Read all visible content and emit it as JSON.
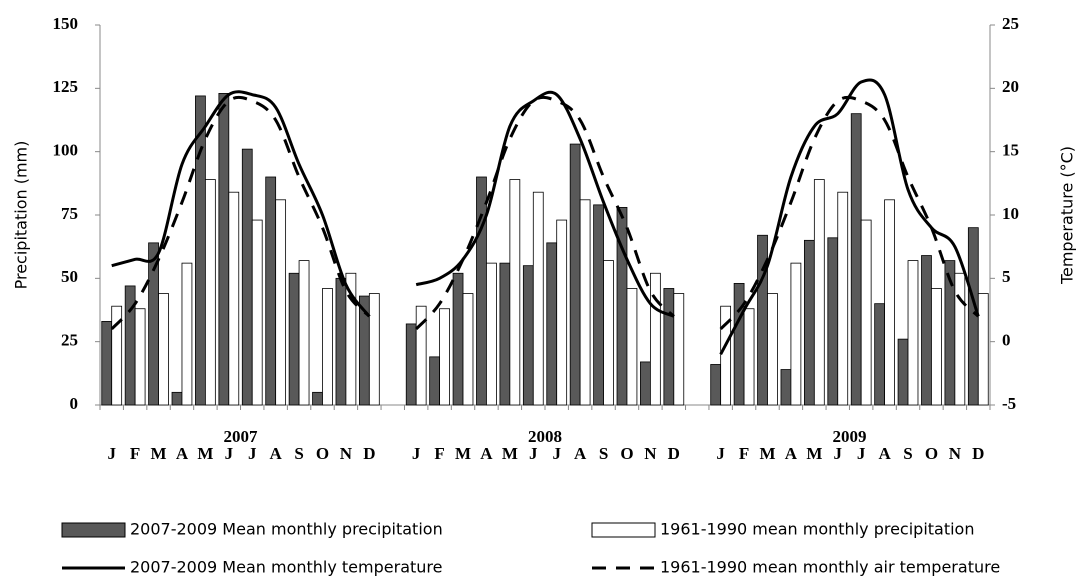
{
  "chart_data": {
    "type": "bar-line",
    "y_label": "Precipitation (mm)",
    "y2_label": "Temperature (°C)",
    "x_groups": [
      "2007",
      "2008",
      "2009"
    ],
    "categories": [
      "J",
      "F",
      "M",
      "A",
      "M",
      "J",
      "J",
      "A",
      "S",
      "O",
      "N",
      "D",
      null,
      "J",
      "F",
      "M",
      "A",
      "M",
      "J",
      "J",
      "A",
      "S",
      "O",
      "N",
      "D",
      null,
      "J",
      "F",
      "M",
      "A",
      "M",
      "J",
      "J",
      "A",
      "S",
      "O",
      "N",
      "D"
    ],
    "ylim": [
      0,
      150
    ],
    "yticks": [
      0,
      25,
      50,
      75,
      100,
      125,
      150
    ],
    "y2lim": [
      -5,
      25
    ],
    "y2ticks": [
      -5,
      0,
      5,
      10,
      15,
      20,
      25
    ],
    "series": [
      {
        "name": "2007-2009 Mean monthly precipitation",
        "kind": "bar",
        "color": "#595959",
        "values": [
          33,
          47,
          64,
          5,
          122,
          123,
          101,
          90,
          52,
          5,
          50,
          43,
          null,
          32,
          19,
          52,
          90,
          56,
          55,
          64,
          103,
          79,
          78,
          17,
          46,
          null,
          16,
          48,
          67,
          14,
          65,
          66,
          115,
          40,
          26,
          59,
          57,
          70
        ]
      },
      {
        "name": "1961-1990 mean monthly precipitation",
        "kind": "bar",
        "color": "#ffffff",
        "values": [
          39,
          38,
          44,
          56,
          89,
          84,
          73,
          81,
          57,
          46,
          52,
          44,
          null,
          39,
          38,
          44,
          56,
          89,
          84,
          73,
          81,
          57,
          46,
          52,
          44,
          null,
          39,
          38,
          44,
          56,
          89,
          84,
          73,
          81,
          57,
          46,
          52,
          44
        ]
      },
      {
        "name": "2007-2009 Mean monthly temperature",
        "kind": "line",
        "dash": false,
        "color": "#000000",
        "axis": "y2",
        "values": [
          6,
          6.5,
          7,
          14,
          17,
          19.5,
          19.5,
          18.5,
          14,
          10,
          4.5,
          2,
          null,
          4.5,
          5,
          6.5,
          10,
          17,
          19,
          19.5,
          16,
          11,
          6.5,
          3,
          2,
          null,
          -1,
          2.5,
          6,
          13,
          17,
          18,
          20.5,
          19.5,
          12,
          9,
          7.5,
          2
        ]
      },
      {
        "name": "1961-1990 mean monthly air temperature",
        "kind": "line",
        "dash": true,
        "color": "#000000",
        "axis": "y2",
        "values": [
          1,
          3,
          6.5,
          11,
          16,
          19,
          19,
          17.5,
          13,
          9,
          4,
          2,
          null,
          1,
          3,
          6.5,
          11,
          16,
          19,
          19,
          17.5,
          13,
          9,
          4,
          2,
          null,
          1,
          3,
          6.5,
          11,
          16,
          19,
          19,
          17.5,
          13,
          9,
          4,
          2
        ]
      }
    ]
  }
}
